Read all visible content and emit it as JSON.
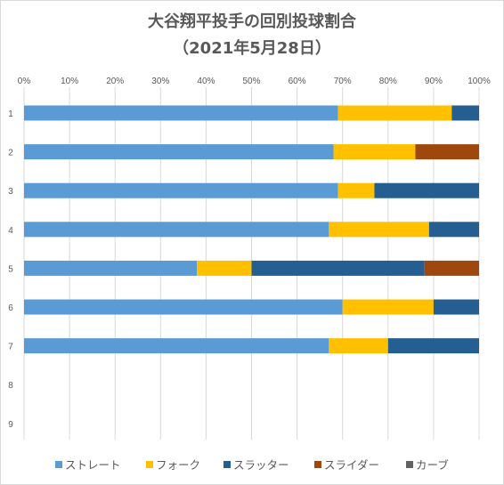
{
  "chart_data": {
    "type": "bar",
    "orientation": "horizontal",
    "stacked": "percent",
    "title": "大谷翔平投手の回別投球割合",
    "subtitle": "（2021年5月28日）",
    "x_ticks": [
      "0%",
      "10%",
      "20%",
      "30%",
      "40%",
      "50%",
      "60%",
      "70%",
      "80%",
      "90%",
      "100%"
    ],
    "xlim": [
      0,
      100
    ],
    "grid": true,
    "legend_position": "bottom",
    "categories": [
      "1",
      "2",
      "3",
      "4",
      "5",
      "6",
      "7",
      "8",
      "9"
    ],
    "series": [
      {
        "name": "ストレート",
        "color": "#5b9bd5",
        "values": [
          69,
          68,
          69,
          67,
          38,
          70,
          67,
          0,
          0
        ]
      },
      {
        "name": "フォーク",
        "color": "#ffc000",
        "values": [
          25,
          18,
          8,
          22,
          12,
          20,
          13,
          0,
          0
        ]
      },
      {
        "name": "スラッター",
        "color": "#255e91",
        "values": [
          6,
          0,
          23,
          11,
          38,
          10,
          20,
          0,
          0
        ]
      },
      {
        "name": "スライダー",
        "color": "#9e480e",
        "values": [
          0,
          14,
          0,
          0,
          12,
          0,
          0,
          0,
          0
        ]
      },
      {
        "name": "カーブ",
        "color": "#636363",
        "values": [
          0,
          0,
          0,
          0,
          0,
          0,
          0,
          0,
          0
        ]
      }
    ]
  }
}
